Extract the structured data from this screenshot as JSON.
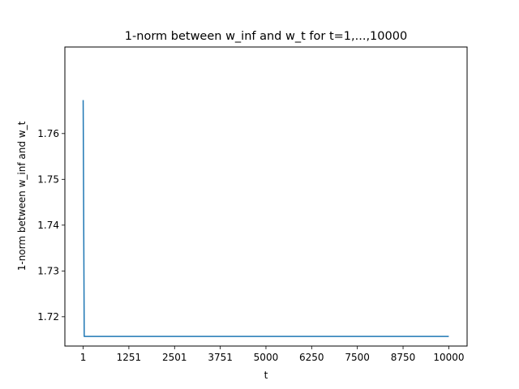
{
  "chart_data": {
    "type": "line",
    "title": "1-norm between w_inf and w_t for t=1,...,10000",
    "xlabel": "t",
    "ylabel": "1-norm between w_inf and w_t",
    "xlim": [
      -499,
      10501
    ],
    "ylim": [
      1.7136,
      1.7789
    ],
    "xticks": [
      1,
      1251,
      2501,
      3751,
      5000,
      6250,
      7500,
      8750,
      10000
    ],
    "xtick_labels": [
      "1",
      "1251",
      "2501",
      "3751",
      "5000",
      "6250",
      "7500",
      "8750",
      "10000"
    ],
    "yticks": [
      1.72,
      1.73,
      1.74,
      1.75,
      1.76
    ],
    "ytick_labels": [
      "1.72",
      "1.73",
      "1.74",
      "1.75",
      "1.76"
    ],
    "grid": false,
    "series": [
      {
        "color": "#1f77b4",
        "x": [
          1,
          30,
          10000
        ],
        "y": [
          1.7673,
          1.7157,
          1.7157
        ]
      }
    ]
  }
}
